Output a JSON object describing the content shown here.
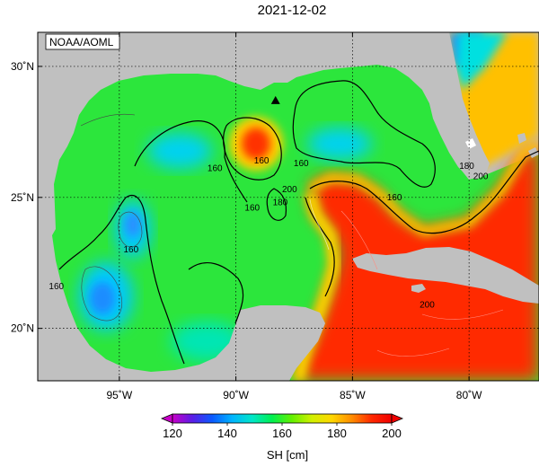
{
  "title": "2021-12-02",
  "credit": "NOAA/AOML",
  "axes": {
    "lon_ticks": [
      {
        "value": -95,
        "label": "95˚W"
      },
      {
        "value": -90,
        "label": "90˚W"
      },
      {
        "value": -85,
        "label": "85˚W"
      },
      {
        "value": -80,
        "label": "80˚W"
      }
    ],
    "lat_ticks": [
      {
        "value": 30,
        "label": "30˚N"
      },
      {
        "value": 25,
        "label": "25˚N"
      },
      {
        "value": 20,
        "label": "20˚N"
      }
    ],
    "lon_range": [
      -98.5,
      -77
    ],
    "lat_range": [
      18,
      31.3
    ]
  },
  "contour_labels": [
    {
      "text": "160",
      "lon": -90.9,
      "lat": 26.1
    },
    {
      "text": "160",
      "lon": -88.9,
      "lat": 26.4
    },
    {
      "text": "160",
      "lon": -87.2,
      "lat": 26.3
    },
    {
      "text": "160",
      "lon": -89.3,
      "lat": 24.6
    },
    {
      "text": "160",
      "lon": -94.5,
      "lat": 23.0
    },
    {
      "text": "160",
      "lon": -97.7,
      "lat": 21.6
    },
    {
      "text": "160",
      "lon": -83.2,
      "lat": 25.0
    },
    {
      "text": "200",
      "lon": -87.7,
      "lat": 25.3
    },
    {
      "text": "180",
      "lon": -88.1,
      "lat": 24.8
    },
    {
      "text": "200",
      "lon": -79.5,
      "lat": 25.8
    },
    {
      "text": "180",
      "lon": -80.1,
      "lat": 26.2
    },
    {
      "text": "200",
      "lon": -81.8,
      "lat": 20.9
    }
  ],
  "marker": {
    "name": "station-marker",
    "lon": -88.3,
    "lat": 28.7
  },
  "colorbar": {
    "min": 120,
    "max": 200,
    "ticks": [
      "120",
      "140",
      "160",
      "180",
      "200"
    ],
    "label": "SH [cm]",
    "stops": [
      "#c800c8",
      "#5a1ee6",
      "#0a5aff",
      "#00b4ff",
      "#00e6c8",
      "#00f050",
      "#64f000",
      "#d2f000",
      "#ffd700",
      "#ff8c00",
      "#ff2800",
      "#f00000"
    ]
  },
  "colors": {
    "land": "#c0c0c0",
    "contour": "#000000",
    "frame": "#000000"
  }
}
